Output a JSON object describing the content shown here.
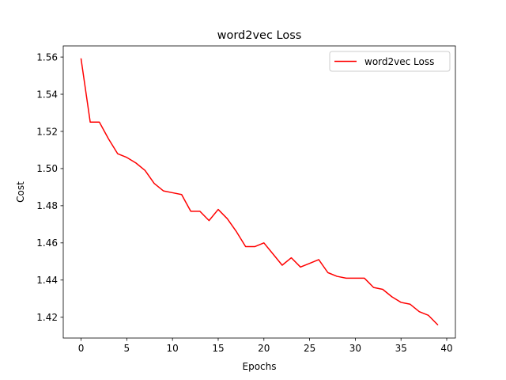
{
  "chart_data": {
    "type": "line",
    "title": "word2vec Loss",
    "xlabel": "Epochs",
    "ylabel": "Cost",
    "xlim": [
      -1.95,
      40.95
    ],
    "ylim": [
      1.4088,
      1.566
    ],
    "xticks": [
      0,
      5,
      10,
      15,
      20,
      25,
      30,
      35,
      40
    ],
    "yticks": [
      1.42,
      1.44,
      1.46,
      1.48,
      1.5,
      1.52,
      1.54,
      1.56
    ],
    "ytick_format": 2,
    "grid": false,
    "legend": {
      "position": "top-right",
      "entries": [
        "word2vec Loss"
      ]
    },
    "series": [
      {
        "name": "word2vec Loss",
        "color": "#ff0000",
        "x": [
          0,
          1,
          2,
          3,
          4,
          5,
          6,
          7,
          8,
          9,
          10,
          11,
          12,
          13,
          14,
          15,
          16,
          17,
          18,
          19,
          20,
          21,
          22,
          23,
          24,
          25,
          26,
          27,
          28,
          29,
          30,
          31,
          32,
          33,
          34,
          35,
          36,
          37,
          38,
          39
        ],
        "y": [
          1.559,
          1.525,
          1.525,
          1.516,
          1.508,
          1.506,
          1.503,
          1.499,
          1.492,
          1.488,
          1.487,
          1.486,
          1.477,
          1.477,
          1.472,
          1.478,
          1.473,
          1.466,
          1.458,
          1.458,
          1.46,
          1.454,
          1.448,
          1.452,
          1.447,
          1.449,
          1.451,
          1.444,
          1.442,
          1.441,
          1.441,
          1.441,
          1.436,
          1.435,
          1.431,
          1.428,
          1.427,
          1.423,
          1.421,
          1.416
        ]
      }
    ]
  }
}
